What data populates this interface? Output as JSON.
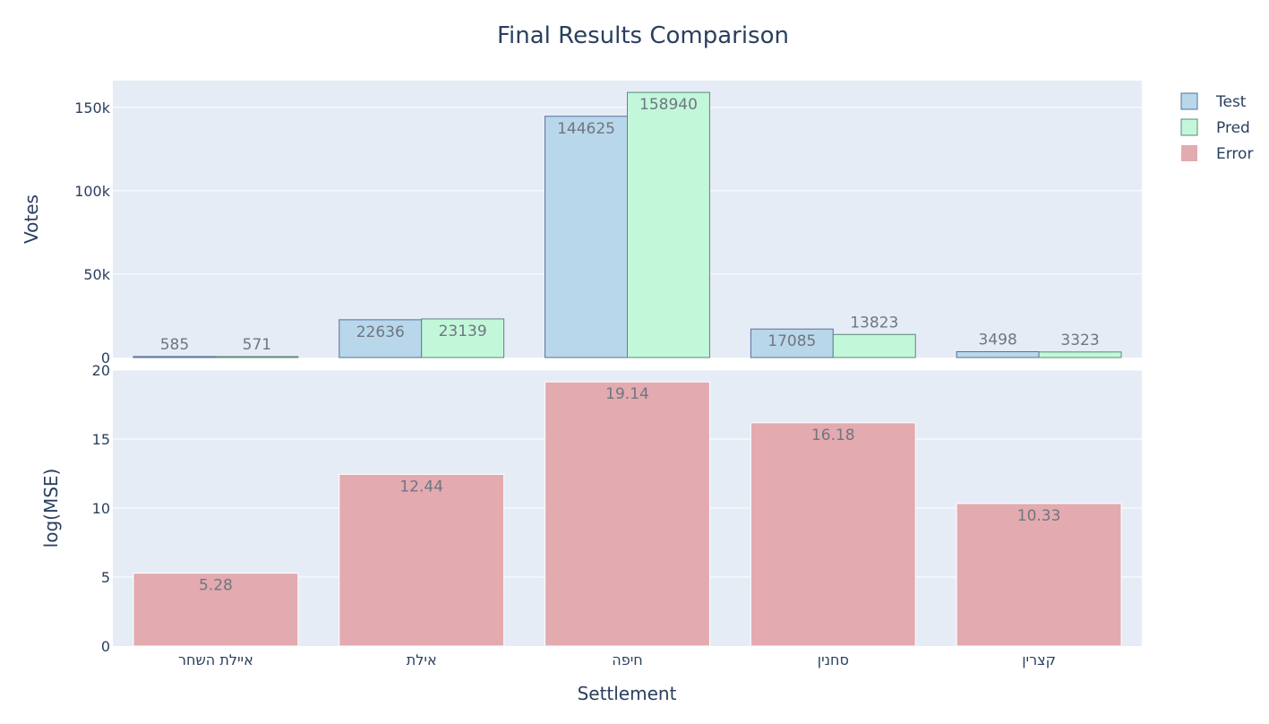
{
  "chart_data": {
    "type": "bar",
    "title": "Final Results Comparison",
    "xlabel": "Settlement",
    "categories": [
      "איילת השחר",
      "אילת",
      "חיפה",
      "סחנין",
      "קצרין"
    ],
    "panels": [
      {
        "ylabel": "Votes",
        "ylim": [
          0,
          166000
        ],
        "yticks": [
          0,
          50000,
          100000,
          150000
        ],
        "ytick_labels": [
          "0",
          "50k",
          "100k",
          "150k"
        ],
        "series": [
          {
            "name": "Test",
            "values": [
              585,
              22636,
              144625,
              17085,
              3498
            ],
            "labels": [
              "585",
              "22636",
              "144625",
              "17085",
              "3498"
            ],
            "fill": "#b9d7ea",
            "stroke": "#55709a"
          },
          {
            "name": "Pred",
            "values": [
              571,
              23139,
              158940,
              13823,
              3323
            ],
            "labels": [
              "571",
              "23139",
              "158940",
              "13823",
              "3323"
            ],
            "fill": "#c3f7da",
            "stroke": "#5c8878"
          }
        ]
      },
      {
        "ylabel": "log(MSE)",
        "ylim": [
          0,
          20
        ],
        "yticks": [
          0,
          5,
          10,
          15,
          20
        ],
        "ytick_labels": [
          "0",
          "5",
          "10",
          "15",
          "20"
        ],
        "series": [
          {
            "name": "Error",
            "values": [
              5.28,
              12.44,
              19.14,
              16.18,
              10.33
            ],
            "labels": [
              "5.28",
              "12.44",
              "19.14",
              "16.18",
              "10.33"
            ],
            "fill": "#e3aab0",
            "stroke": "#ffffff"
          }
        ]
      }
    ],
    "legend": {
      "position": "top-right",
      "entries": [
        "Test",
        "Pred",
        "Error"
      ]
    },
    "grid": true,
    "plot_background": "#e5ecf6"
  }
}
